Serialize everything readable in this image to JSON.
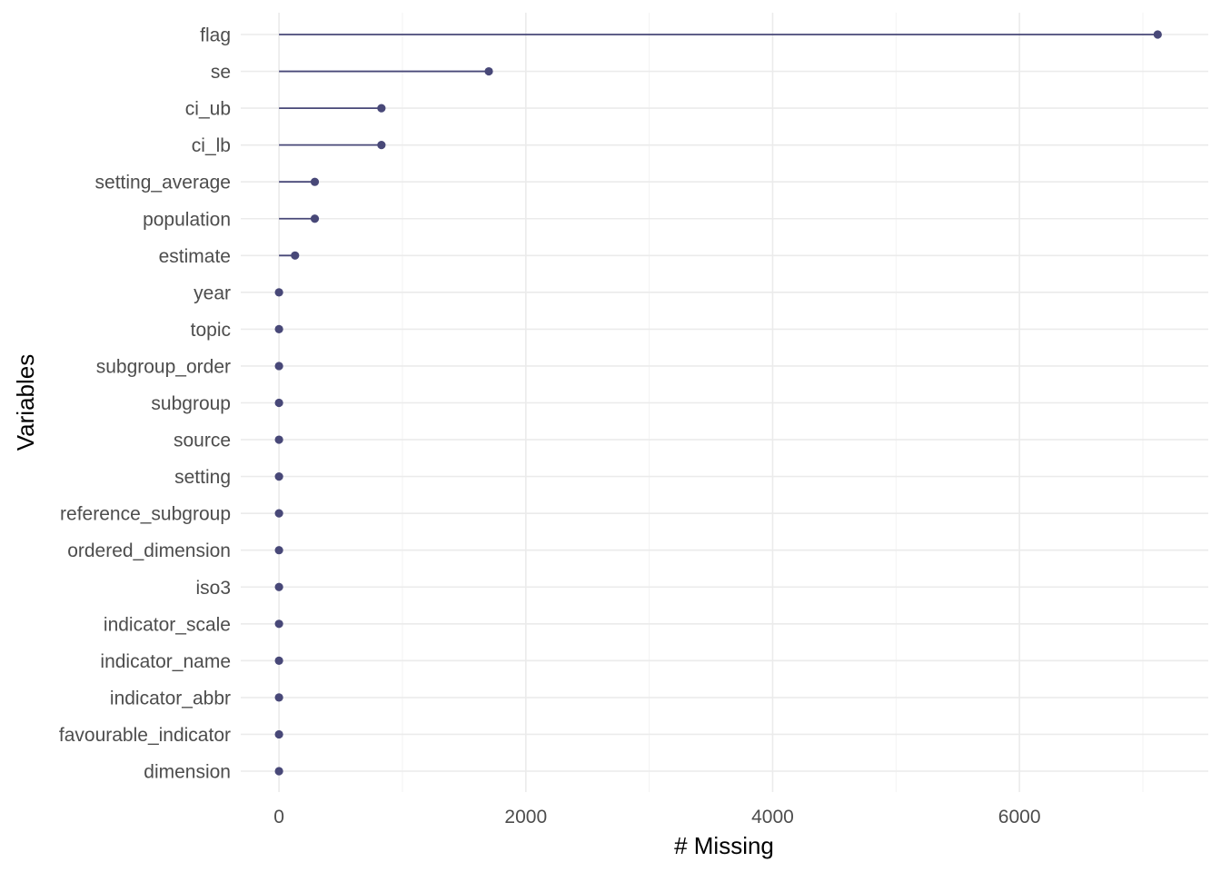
{
  "chart_data": {
    "type": "lollipop",
    "title": "",
    "xlabel": "# Missing",
    "ylabel": "Variables",
    "xlim": [
      -310,
      7530
    ],
    "x_ticks": [
      0,
      2000,
      4000,
      6000
    ],
    "x_tick_labels": [
      "0",
      "2000",
      "4000",
      "6000"
    ],
    "grid": true,
    "legend": "none",
    "colors": {
      "segment": "#484878",
      "point": "#484878"
    },
    "categories": [
      "flag",
      "se",
      "ci_ub",
      "ci_lb",
      "setting_average",
      "population",
      "estimate",
      "year",
      "topic",
      "subgroup_order",
      "subgroup",
      "source",
      "setting",
      "reference_subgroup",
      "ordered_dimension",
      "iso3",
      "indicator_scale",
      "indicator_name",
      "indicator_abbr",
      "favourable_indicator",
      "dimension"
    ],
    "values": [
      7120,
      1700,
      830,
      830,
      290,
      290,
      130,
      0,
      0,
      0,
      0,
      0,
      0,
      0,
      0,
      0,
      0,
      0,
      0,
      0,
      0
    ]
  }
}
